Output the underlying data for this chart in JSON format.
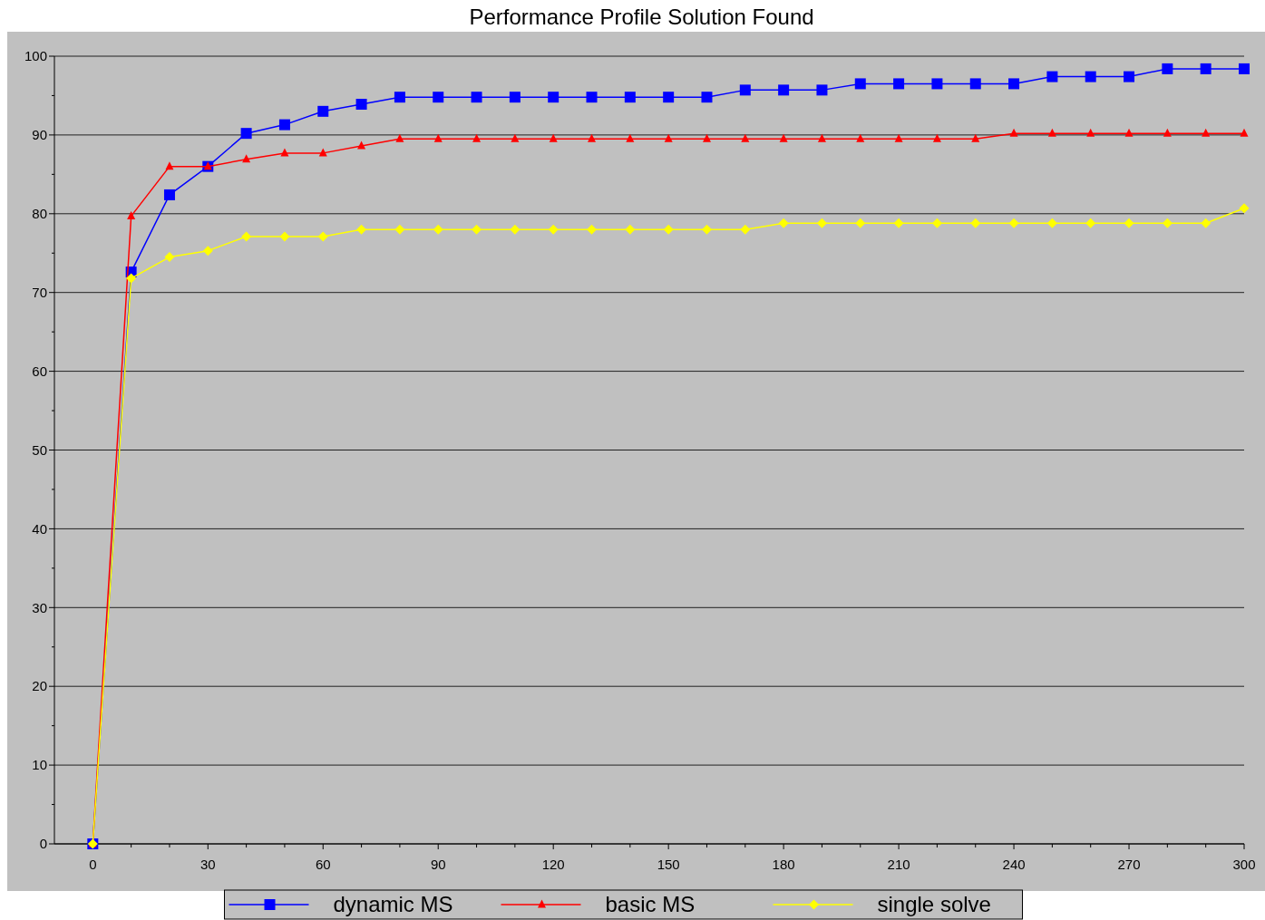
{
  "chart_data": {
    "type": "line",
    "title": "Performance Profile Solution Found",
    "x": [
      0,
      10,
      20,
      30,
      40,
      50,
      60,
      70,
      80,
      90,
      100,
      110,
      120,
      130,
      140,
      150,
      160,
      170,
      180,
      190,
      200,
      210,
      220,
      230,
      240,
      250,
      260,
      270,
      280,
      290,
      300
    ],
    "series": [
      {
        "name": "dynamic MS",
        "color": "#0000ff",
        "marker": "square",
        "values": [
          0,
          72.6,
          82.4,
          86.0,
          90.2,
          91.3,
          93.0,
          93.9,
          94.8,
          94.8,
          94.8,
          94.8,
          94.8,
          94.8,
          94.8,
          94.8,
          94.8,
          95.7,
          95.7,
          95.7,
          96.5,
          96.5,
          96.5,
          96.5,
          96.5,
          97.4,
          97.4,
          97.4,
          98.4,
          98.4,
          98.4
        ]
      },
      {
        "name": "basic MS",
        "color": "#ff0000",
        "marker": "triangle",
        "values": [
          0,
          79.7,
          86.0,
          86.0,
          86.9,
          87.7,
          87.7,
          88.6,
          89.5,
          89.5,
          89.5,
          89.5,
          89.5,
          89.5,
          89.5,
          89.5,
          89.5,
          89.5,
          89.5,
          89.5,
          89.5,
          89.5,
          89.5,
          89.5,
          90.2,
          90.2,
          90.2,
          90.2,
          90.2,
          90.2,
          90.2
        ]
      },
      {
        "name": "single solve",
        "color": "#ffff00",
        "marker": "diamond",
        "values": [
          0,
          71.8,
          74.5,
          75.3,
          77.1,
          77.1,
          77.1,
          78.0,
          78.0,
          78.0,
          78.0,
          78.0,
          78.0,
          78.0,
          78.0,
          78.0,
          78.0,
          78.0,
          78.8,
          78.8,
          78.8,
          78.8,
          78.8,
          78.8,
          78.8,
          78.8,
          78.8,
          78.8,
          78.8,
          78.8,
          80.7
        ]
      }
    ],
    "xlim": [
      -10,
      300
    ],
    "xticks": [
      0,
      30,
      60,
      90,
      120,
      150,
      180,
      210,
      240,
      270,
      300
    ],
    "ylim": [
      0,
      100
    ],
    "yticks": [
      0,
      10,
      20,
      30,
      40,
      50,
      60,
      70,
      80,
      90,
      100
    ],
    "grid": "y",
    "legend": "bottom"
  }
}
